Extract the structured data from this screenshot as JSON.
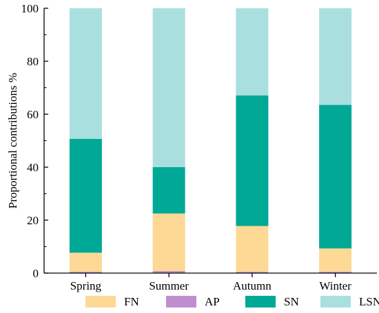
{
  "chart_data": {
    "type": "bar",
    "stacked": true,
    "title": "",
    "xlabel": "",
    "ylabel": "Proportional contributions %",
    "ylim": [
      0,
      100
    ],
    "yticks": [
      "0",
      "20",
      "40",
      "60",
      "80",
      "100"
    ],
    "categories": [
      "Spring",
      "Summer",
      "Autumn",
      "Winter"
    ],
    "series": [
      {
        "name": "AP",
        "color": "#c08fd0",
        "values": [
          0.5,
          0.8,
          0.5,
          0.5
        ]
      },
      {
        "name": "FN",
        "color": "#fdd995",
        "values": [
          7.2,
          21.7,
          17.3,
          8.8
        ]
      },
      {
        "name": "SN",
        "color": "#00a896",
        "values": [
          43.0,
          17.5,
          49.3,
          54.2
        ]
      },
      {
        "name": "LSN",
        "color": "#aadfdf",
        "values": [
          49.3,
          60.0,
          32.9,
          36.5
        ]
      }
    ],
    "legend_order": [
      "FN",
      "AP",
      "SN",
      "LSN"
    ],
    "legend_position": "bottom",
    "grid": false
  }
}
